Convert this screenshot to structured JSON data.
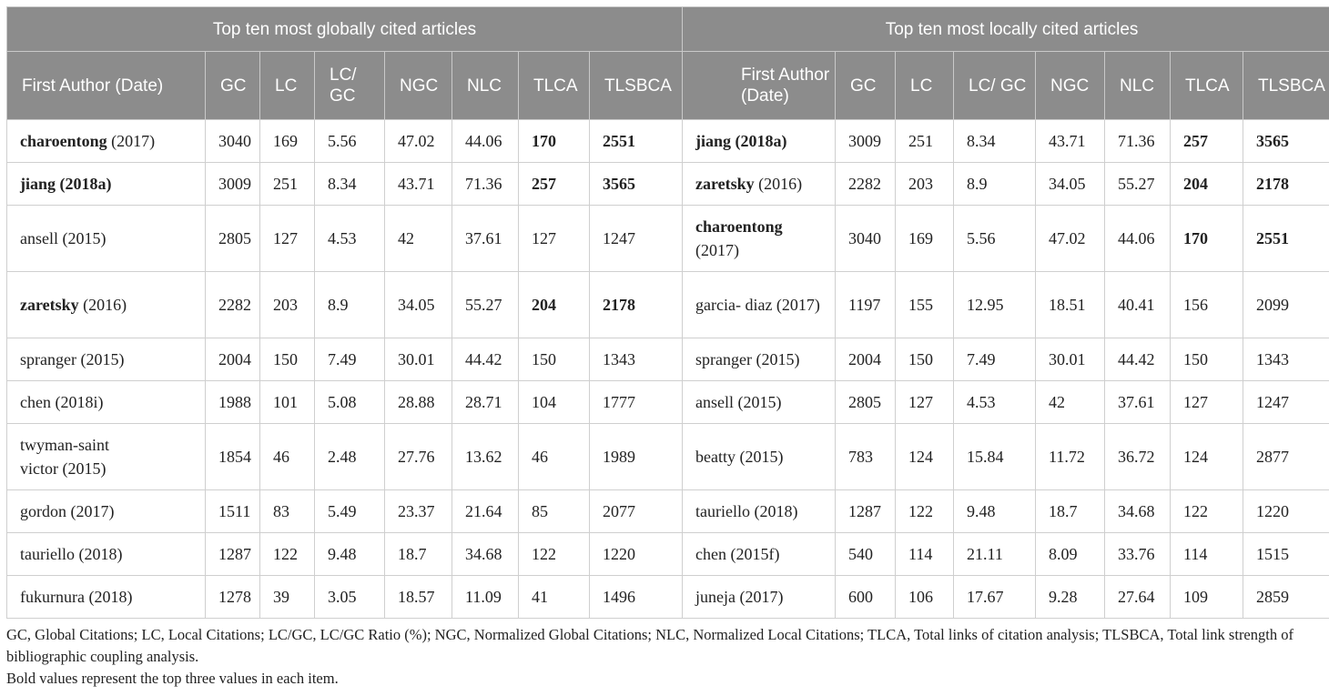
{
  "groups": {
    "global": "Top ten most globally cited articles",
    "local": "Top ten most locally cited articles"
  },
  "columns": [
    "First Author (Date)",
    "GC",
    "LC",
    "LC/ GC",
    "NGC",
    "NLC",
    "TLCA",
    "TLSBCA"
  ],
  "rows": [
    {
      "left": {
        "name": "charoentong",
        "year": "(2017)",
        "gc": "3040",
        "lc": "169",
        "lcgc": "5.56",
        "ngc": "47.02",
        "nlc": "44.06",
        "tlca": "170",
        "tlsbca": "2551"
      },
      "right": {
        "name": "jiang (2018a)",
        "year": "",
        "gc": "3009",
        "lc": "251",
        "lcgc": "8.34",
        "ngc": "43.71",
        "nlc": "71.36",
        "tlca": "257",
        "tlsbca": "3565"
      }
    },
    {
      "left": {
        "name": "jiang (2018a)",
        "year": "",
        "gc": "3009",
        "lc": "251",
        "lcgc": "8.34",
        "ngc": "43.71",
        "nlc": "71.36",
        "tlca": "257",
        "tlsbca": "3565"
      },
      "right": {
        "name": "zaretsky",
        "year": "(2016)",
        "gc": "2282",
        "lc": "203",
        "lcgc": "8.9",
        "ngc": "34.05",
        "nlc": "55.27",
        "tlca": "204",
        "tlsbca": "2178"
      }
    },
    {
      "left": {
        "name": "ansell (2015)",
        "year": "",
        "gc": "2805",
        "lc": "127",
        "lcgc": "4.53",
        "ngc": "42",
        "nlc": "37.61",
        "tlca": "127",
        "tlsbca": "1247"
      },
      "right": {
        "name": "charoentong",
        "year": "(2017)",
        "gc": "3040",
        "lc": "169",
        "lcgc": "5.56",
        "ngc": "47.02",
        "nlc": "44.06",
        "tlca": "170",
        "tlsbca": "2551"
      }
    },
    {
      "left": {
        "name": "zaretsky",
        "year": "(2016)",
        "gc": "2282",
        "lc": "203",
        "lcgc": "8.9",
        "ngc": "34.05",
        "nlc": "55.27",
        "tlca": "204",
        "tlsbca": "2178"
      },
      "right": {
        "name": "garcia- diaz (2017)",
        "year": "",
        "gc": "1197",
        "lc": "155",
        "lcgc": "12.95",
        "ngc": "18.51",
        "nlc": "40.41",
        "tlca": "156",
        "tlsbca": "2099"
      }
    },
    {
      "left": {
        "name": "spranger (2015)",
        "year": "",
        "gc": "2004",
        "lc": "150",
        "lcgc": "7.49",
        "ngc": "30.01",
        "nlc": "44.42",
        "tlca": "150",
        "tlsbca": "1343"
      },
      "right": {
        "name": "spranger (2015)",
        "year": "",
        "gc": "2004",
        "lc": "150",
        "lcgc": "7.49",
        "ngc": "30.01",
        "nlc": "44.42",
        "tlca": "150",
        "tlsbca": "1343"
      }
    },
    {
      "left": {
        "name": "chen (2018i)",
        "year": "",
        "gc": "1988",
        "lc": "101",
        "lcgc": "5.08",
        "ngc": "28.88",
        "nlc": "28.71",
        "tlca": "104",
        "tlsbca": "1777"
      },
      "right": {
        "name": "ansell (2015)",
        "year": "",
        "gc": "2805",
        "lc": "127",
        "lcgc": "4.53",
        "ngc": "42",
        "nlc": "37.61",
        "tlca": "127",
        "tlsbca": "1247"
      }
    },
    {
      "left": {
        "name": "twyman-saint victor (2015)",
        "year": "",
        "gc": "1854",
        "lc": "46",
        "lcgc": "2.48",
        "ngc": "27.76",
        "nlc": "13.62",
        "tlca": "46",
        "tlsbca": "1989"
      },
      "right": {
        "name": "beatty (2015)",
        "year": "",
        "gc": "783",
        "lc": "124",
        "lcgc": "15.84",
        "ngc": "11.72",
        "nlc": "36.72",
        "tlca": "124",
        "tlsbca": "2877"
      }
    },
    {
      "left": {
        "name": "gordon (2017)",
        "year": "",
        "gc": "1511",
        "lc": "83",
        "lcgc": "5.49",
        "ngc": "23.37",
        "nlc": "21.64",
        "tlca": "85",
        "tlsbca": "2077"
      },
      "right": {
        "name": "tauriello (2018)",
        "year": "",
        "gc": "1287",
        "lc": "122",
        "lcgc": "9.48",
        "ngc": "18.7",
        "nlc": "34.68",
        "tlca": "122",
        "tlsbca": "1220"
      }
    },
    {
      "left": {
        "name": "tauriello (2018)",
        "year": "",
        "gc": "1287",
        "lc": "122",
        "lcgc": "9.48",
        "ngc": "18.7",
        "nlc": "34.68",
        "tlca": "122",
        "tlsbca": "1220"
      },
      "right": {
        "name": "chen (2015f)",
        "year": "",
        "gc": "540",
        "lc": "114",
        "lcgc": "21.11",
        "ngc": "8.09",
        "nlc": "33.76",
        "tlca": "114",
        "tlsbca": "1515"
      }
    },
    {
      "left": {
        "name": "fukurnura (2018)",
        "year": "",
        "gc": "1278",
        "lc": "39",
        "lcgc": "3.05",
        "ngc": "18.57",
        "nlc": "11.09",
        "tlca": "41",
        "tlsbca": "1496"
      },
      "right": {
        "name": "juneja (2017)",
        "year": "",
        "gc": "600",
        "lc": "106",
        "lcgc": "17.67",
        "ngc": "9.28",
        "nlc": "27.64",
        "tlca": "109",
        "tlsbca": "2859"
      }
    }
  ],
  "footnote": {
    "abbrev": "GC, Global Citations; LC, Local Citations; LC/GC, LC/GC Ratio (%); NGC, Normalized Global Citations; NLC, Normalized Local Citations; TLCA, Total links of citation analysis; TLSBCA, Total link strength of bibliographic coupling analysis.",
    "bold_note": "Bold values represent the top three values in each item."
  }
}
